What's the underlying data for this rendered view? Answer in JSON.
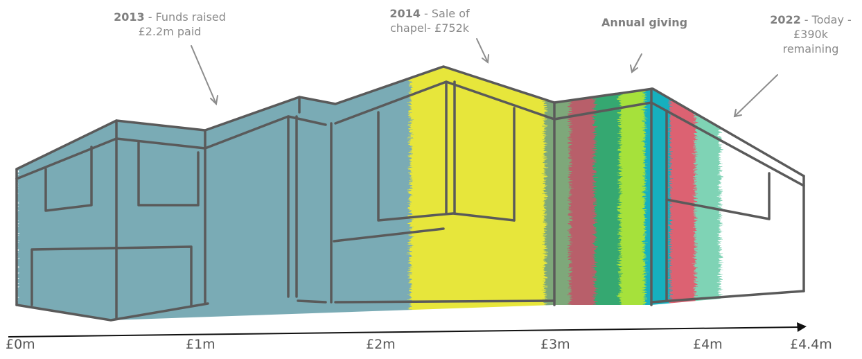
{
  "chart_data": {
    "type": "bar",
    "orientation": "horizontal-stacked",
    "title": "",
    "xlabel": "",
    "ylabel": "",
    "xlim": [
      0,
      4.4
    ],
    "ticks": [
      "£0m",
      "£1m",
      "£2m",
      "£3m",
      "£4m",
      "£4.4m"
    ],
    "tick_values": [
      0,
      1,
      2,
      3,
      4,
      4.4
    ],
    "segments": [
      {
        "value": 2.2,
        "color": "#7aabb5"
      },
      {
        "value": 0.752,
        "color": "#e7e63b"
      },
      {
        "value": 0.14,
        "color": "#7ea87a"
      },
      {
        "value": 0.14,
        "color": "#b85f6a"
      },
      {
        "value": 0.14,
        "color": "#36a871"
      },
      {
        "value": 0.14,
        "color": "#a6e13a"
      },
      {
        "value": 0.14,
        "color": "#16b0be"
      },
      {
        "value": 0.14,
        "color": "#dc6272"
      },
      {
        "value": 0.14,
        "color": "#7fd3b5"
      },
      {
        "value": 0.39,
        "color": "#ffffff"
      }
    ],
    "annotations": [
      {
        "bold": "2013",
        "text": " - Funds raised £2.2m paid"
      },
      {
        "bold": "2014",
        "text": "  - Sale of chapel- £752k"
      },
      {
        "bold": "Annual giving",
        "text": ""
      },
      {
        "bold": "2022",
        "text": " - Today - £390k remaining"
      }
    ]
  }
}
